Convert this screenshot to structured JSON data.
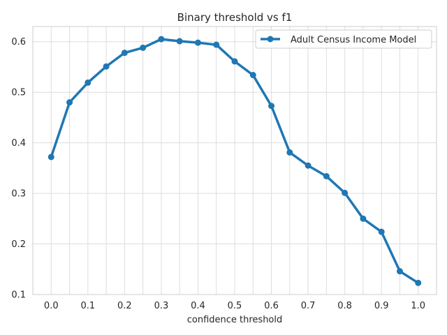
{
  "chart_data": {
    "type": "line",
    "title": "Binary threshold vs f1",
    "xlabel": "confidence threshold",
    "ylabel": "",
    "x": [
      0.0,
      0.05,
      0.1,
      0.15,
      0.2,
      0.25,
      0.3,
      0.35,
      0.4,
      0.45,
      0.5,
      0.55,
      0.6,
      0.65,
      0.7,
      0.75,
      0.8,
      0.85,
      0.9,
      0.95,
      1.0
    ],
    "series": [
      {
        "name": "Adult Census Income Model",
        "color": "#1f77b4",
        "values": [
          0.372,
          0.48,
          0.519,
          0.551,
          0.578,
          0.588,
          0.605,
          0.601,
          0.598,
          0.594,
          0.561,
          0.534,
          0.473,
          0.381,
          0.355,
          0.334,
          0.301,
          0.25,
          0.224,
          0.146,
          0.123
        ]
      }
    ],
    "xlim": [
      -0.05,
      1.05
    ],
    "ylim": [
      0.1,
      0.63
    ],
    "xticks": [
      "0.0",
      "0.1",
      "0.2",
      "0.3",
      "0.4",
      "0.5",
      "0.6",
      "0.7",
      "0.8",
      "0.9",
      "1.0"
    ],
    "yticks": [
      "0.1",
      "0.2",
      "0.3",
      "0.4",
      "0.5",
      "0.6"
    ],
    "grid": true,
    "legend_position": "top-right"
  }
}
